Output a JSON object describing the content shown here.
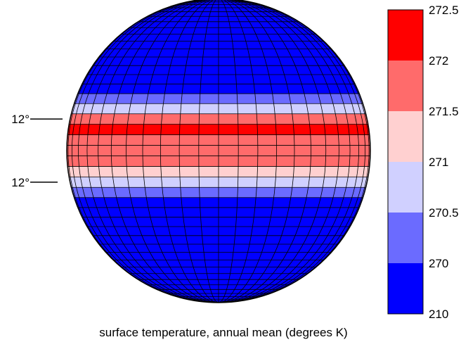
{
  "chart_data": {
    "type": "heatmap",
    "title": "",
    "caption": "surface temperature, annual mean (degrees K)",
    "latitude_labels": [
      "12°",
      "12°"
    ],
    "colorbar": {
      "ticks": [
        "272.5",
        "272",
        "271.5",
        "271",
        "270.5",
        "270",
        "210"
      ],
      "bins": [
        {
          "from": 272.0,
          "to": 272.5,
          "color": "#ff0000"
        },
        {
          "from": 271.5,
          "to": 272.0,
          "color": "#ff6b6b"
        },
        {
          "from": 271.0,
          "to": 271.5,
          "color": "#ffd0d0"
        },
        {
          "from": 270.5,
          "to": 271.0,
          "color": "#d0d0ff"
        },
        {
          "from": 270.0,
          "to": 270.5,
          "color": "#6b6bff"
        },
        {
          "from": 210.0,
          "to": 270.0,
          "color": "#0000ff"
        }
      ]
    },
    "grid": {
      "longitude_step_deg": 7.5,
      "latitude_step_deg": 4,
      "latitude_range": [
        -90,
        90
      ],
      "longitude_range": [
        -90,
        90
      ]
    },
    "temperature_by_latitude_band": [
      {
        "lat_from": 16,
        "lat_to": 20,
        "value": 270.2
      },
      {
        "lat_from": 12,
        "lat_to": 16,
        "value": 270.9
      },
      {
        "lat_from": 8,
        "lat_to": 12,
        "value": 271.6
      },
      {
        "lat_from": 4,
        "lat_to": 8,
        "value": 272.2
      },
      {
        "lat_from": 0,
        "lat_to": 4,
        "value": 271.8
      },
      {
        "lat_from": -4,
        "lat_to": 0,
        "value": 271.7
      },
      {
        "lat_from": -8,
        "lat_to": -4,
        "value": 271.7
      },
      {
        "lat_from": -12,
        "lat_to": -8,
        "value": 271.2
      },
      {
        "lat_from": -16,
        "lat_to": -12,
        "value": 270.6
      },
      {
        "lat_from": -20,
        "lat_to": -16,
        "value": 270.2
      }
    ],
    "outside_band_value": 240
  }
}
